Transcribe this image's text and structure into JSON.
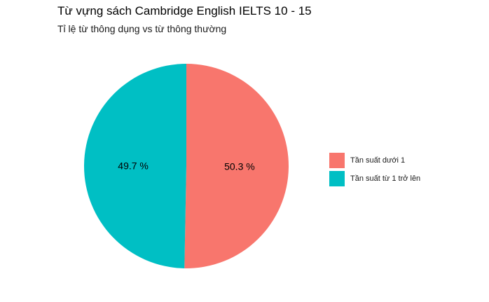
{
  "chart_data": {
    "type": "pie",
    "title": "Từ vựng sách Cambridge English IELTS 10 - 15",
    "subtitle": "Tỉ lệ từ thông dụng vs từ thông thường",
    "slices": [
      {
        "label": "Tần suất dưới 1",
        "value": 50.3,
        "display": "50.3 %",
        "color": "#F8766D"
      },
      {
        "label": "Tần suất từ 1 trở lên",
        "value": 49.7,
        "display": "49.7 %",
        "color": "#00BFC4"
      }
    ],
    "legend_position": "right"
  }
}
